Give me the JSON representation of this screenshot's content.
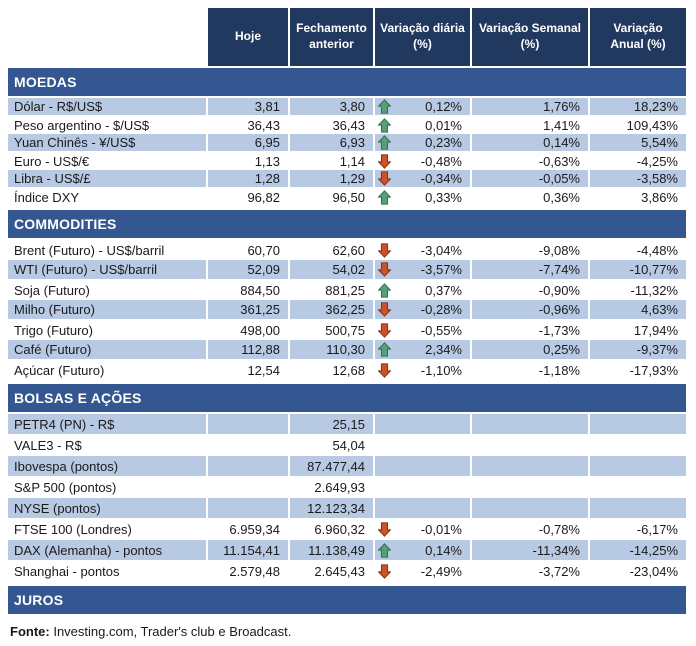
{
  "chart_data": {
    "type": "table",
    "columns": [
      {
        "line1": "Hoje",
        "line2": ""
      },
      {
        "line1": "Fechamento",
        "line2": "anterior"
      },
      {
        "line1": "Variação diária",
        "line2": "(%)"
      },
      {
        "line1": "Variação Semanal",
        "line2": "(%)"
      },
      {
        "line1": "Variação",
        "line2": "Anual (%)"
      }
    ],
    "sections": [
      {
        "title": "MOEDAS",
        "rows": [
          {
            "label": "Dólar - R$/US$",
            "hoje": "3,81",
            "anterior": "3,80",
            "arrow": "up",
            "diaria": "0,12%",
            "semanal": "1,76%",
            "anual": "18,23%",
            "shaded": true
          },
          {
            "label": "Peso argentino - $/US$",
            "hoje": "36,43",
            "anterior": "36,43",
            "arrow": "up",
            "diaria": "0,01%",
            "semanal": "1,41%",
            "anual": "109,43%",
            "shaded": false
          },
          {
            "label": "Yuan Chinês - ¥/US$",
            "hoje": "6,95",
            "anterior": "6,93",
            "arrow": "up",
            "diaria": "0,23%",
            "semanal": "0,14%",
            "anual": "5,54%",
            "shaded": true
          },
          {
            "label": "Euro - US$/€",
            "hoje": "1,13",
            "anterior": "1,14",
            "arrow": "down",
            "diaria": "-0,48%",
            "semanal": "-0,63%",
            "anual": "-4,25%",
            "shaded": false
          },
          {
            "label": "Libra - US$/£",
            "hoje": "1,28",
            "anterior": "1,29",
            "arrow": "down",
            "diaria": "-0,34%",
            "semanal": "-0,05%",
            "anual": "-3,58%",
            "shaded": true
          },
          {
            "label": "Índice DXY",
            "hoje": "96,82",
            "anterior": "96,50",
            "arrow": "up",
            "diaria": "0,33%",
            "semanal": "0,36%",
            "anual": "3,86%",
            "shaded": false
          }
        ]
      },
      {
        "title": "COMMODITIES",
        "rows": [
          {
            "label": "Brent (Futuro) - US$/barril",
            "hoje": "60,70",
            "anterior": "62,60",
            "arrow": "down",
            "diaria": "-3,04%",
            "semanal": "-9,08%",
            "anual": "-4,48%",
            "shaded": false
          },
          {
            "label": "WTI (Futuro) - US$/barril",
            "hoje": "52,09",
            "anterior": "54,02",
            "arrow": "down",
            "diaria": "-3,57%",
            "semanal": "-7,74%",
            "anual": "-10,77%",
            "shaded": true
          },
          {
            "label": "Soja (Futuro)",
            "hoje": "884,50",
            "anterior": "881,25",
            "arrow": "up",
            "diaria": "0,37%",
            "semanal": "-0,90%",
            "anual": "-11,32%",
            "shaded": false
          },
          {
            "label": "Milho (Futuro)",
            "hoje": "361,25",
            "anterior": "362,25",
            "arrow": "down",
            "diaria": "-0,28%",
            "semanal": "-0,96%",
            "anual": "4,63%",
            "shaded": true
          },
          {
            "label": "Trigo (Futuro)",
            "hoje": "498,00",
            "anterior": "500,75",
            "arrow": "down",
            "diaria": "-0,55%",
            "semanal": "-1,73%",
            "anual": "17,94%",
            "shaded": false
          },
          {
            "label": "Café (Futuro)",
            "hoje": "112,88",
            "anterior": "110,30",
            "arrow": "up",
            "diaria": "2,34%",
            "semanal": "0,25%",
            "anual": "-9,37%",
            "shaded": true
          },
          {
            "label": "Açúcar (Futuro)",
            "hoje": "12,54",
            "anterior": "12,68",
            "arrow": "down",
            "diaria": "-1,10%",
            "semanal": "-1,18%",
            "anual": "-17,93%",
            "shaded": false
          }
        ]
      },
      {
        "title": "BOLSAS E AÇÕES",
        "rows": [
          {
            "label": "PETR4 (PN) - R$",
            "hoje": "",
            "anterior": "25,15",
            "arrow": "none",
            "diaria": "",
            "semanal": "",
            "anual": "",
            "shaded": true
          },
          {
            "label": "VALE3 - R$",
            "hoje": "",
            "anterior": "54,04",
            "arrow": "none",
            "diaria": "",
            "semanal": "",
            "anual": "",
            "shaded": false
          },
          {
            "label": "Ibovespa (pontos)",
            "hoje": "",
            "anterior": "87.477,44",
            "arrow": "none",
            "diaria": "",
            "semanal": "",
            "anual": "",
            "shaded": true
          },
          {
            "label": "S&P 500 (pontos)",
            "hoje": "",
            "anterior": "2.649,93",
            "arrow": "none",
            "diaria": "",
            "semanal": "",
            "anual": "",
            "shaded": false
          },
          {
            "label": "NYSE (pontos)",
            "hoje": "",
            "anterior": "12.123,34",
            "arrow": "none",
            "diaria": "",
            "semanal": "",
            "anual": "",
            "shaded": true
          },
          {
            "label": "FTSE 100 (Londres)",
            "hoje": "6.959,34",
            "anterior": "6.960,32",
            "arrow": "down",
            "diaria": "-0,01%",
            "semanal": "-0,78%",
            "anual": "-6,17%",
            "shaded": false
          },
          {
            "label": "DAX (Alemanha) - pontos",
            "hoje": "11.154,41",
            "anterior": "11.138,49",
            "arrow": "up",
            "diaria": "0,14%",
            "semanal": "-11,34%",
            "anual": "-14,25%",
            "shaded": true
          },
          {
            "label": "Shanghai - pontos",
            "hoje": "2.579,48",
            "anterior": "2.645,43",
            "arrow": "down",
            "diaria": "-2,49%",
            "semanal": "-3,72%",
            "anual": "-23,04%",
            "shaded": false
          }
        ]
      },
      {
        "title": "JUROS",
        "rows": []
      }
    ]
  },
  "footer": {
    "label": "Fonte:",
    "text": " Investing.com, Trader's club e Broadcast."
  },
  "icons": {
    "up": "up-arrow-icon",
    "down": "down-arrow-icon"
  },
  "colors": {
    "header_bg": "#21395F",
    "section_bg": "#345792",
    "row_shaded": "#B7C9E3",
    "text": "#1A1A1A",
    "header_text": "#FFFFFF",
    "up_arrow": "#57A077",
    "up_arrow_border": "#2E6B4F",
    "down_arrow": "#CC5327",
    "down_arrow_border": "#7E3010"
  }
}
